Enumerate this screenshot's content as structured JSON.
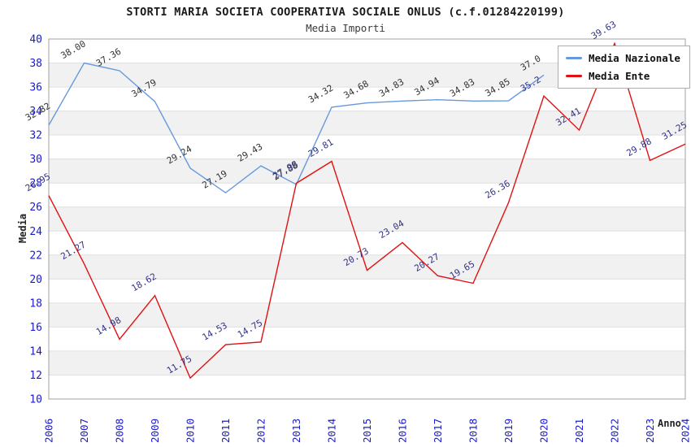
{
  "chart_data": {
    "type": "line",
    "title": "STORTI MARIA SOCIETA COOPERATIVA SOCIALE ONLUS (c.f.01284220199)",
    "subtitle": "Media Importi",
    "xlabel": "Anno",
    "ylabel": "Media",
    "ylim": [
      10,
      40
    ],
    "ytick_step": 2,
    "grid": "horizontal-bands",
    "legend_position": "top-right",
    "categories": [
      "2006",
      "2007",
      "2008",
      "2009",
      "2010",
      "2011",
      "2012",
      "2013",
      "2014",
      "2015",
      "2016",
      "2017",
      "2018",
      "2019",
      "2020",
      "2021",
      "2022",
      "2023",
      "2024"
    ],
    "series": [
      {
        "name": "Media Nazionale",
        "color": "#6699dd",
        "label_color": "#333333",
        "values": [
          32.82,
          38.0,
          37.36,
          34.79,
          29.24,
          27.19,
          29.43,
          27.88,
          34.32,
          34.68,
          34.83,
          34.94,
          34.83,
          34.85,
          37.0,
          null,
          null,
          null,
          null
        ],
        "display_labels": [
          "32.82",
          "38.00",
          "37.36",
          "34.79",
          "29.24",
          "27.19",
          "29.43",
          "27.88",
          "34.32",
          "34.68",
          "34.83",
          "34.94",
          "34.83",
          "34.85",
          "37.0",
          null,
          null,
          null,
          null
        ]
      },
      {
        "name": "Media Ente",
        "color": "#e01111",
        "label_color": "#333388",
        "values": [
          26.95,
          21.27,
          14.98,
          18.62,
          11.75,
          14.53,
          14.75,
          27.98,
          29.81,
          20.73,
          23.04,
          20.27,
          19.65,
          26.36,
          35.25,
          32.41,
          39.63,
          29.88,
          31.25
        ],
        "display_labels": [
          "26.95",
          "21.27",
          "14.98",
          "18.62",
          "11.75",
          "14.53",
          "14.75",
          "27.98",
          "29.81",
          "20.73",
          "23.04",
          "20.27",
          "19.65",
          "26.36",
          "35.2",
          "32.41",
          "39.63",
          "29.88",
          "31.25"
        ]
      }
    ],
    "colors": {
      "tick_label": "#1a1acc",
      "band_gray": "#f1f1f1",
      "gridline": "#e0e0e0",
      "frame": "#a0a0a0"
    }
  }
}
